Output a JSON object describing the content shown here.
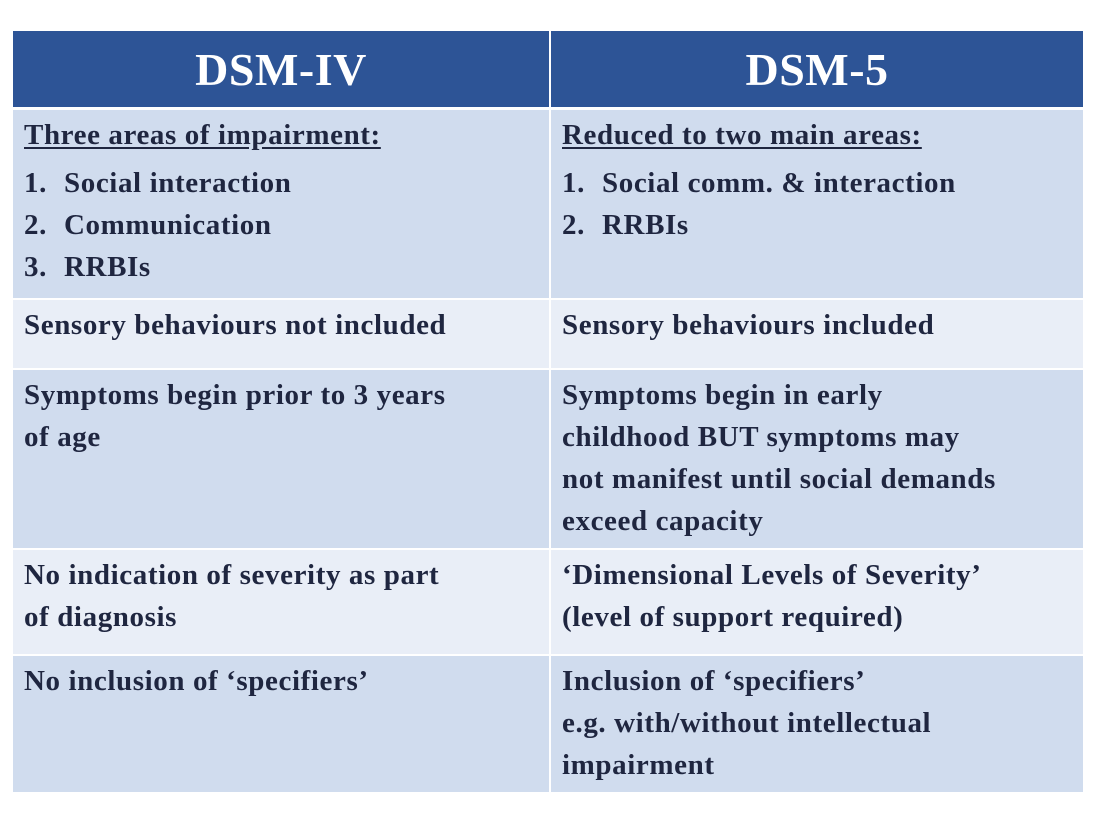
{
  "table": {
    "headers": [
      "DSM-IV",
      "DSM-5"
    ],
    "rows": [
      {
        "left": {
          "heading": "Three areas of impairment:",
          "items": [
            {
              "num": "1.",
              "text": "Social interaction"
            },
            {
              "num": "2.",
              "text": "Communication"
            },
            {
              "num": "3.",
              "text": "RRBIs"
            }
          ]
        },
        "right": {
          "heading": "Reduced to two main areas:",
          "items": [
            {
              "num": "1.",
              "text": "Social comm. & interaction"
            },
            {
              "num": "2.",
              "text": "RRBIs"
            }
          ]
        }
      },
      {
        "left": {
          "lines": [
            "Sensory behaviours not included"
          ]
        },
        "right": {
          "lines": [
            "Sensory behaviours included"
          ]
        }
      },
      {
        "left": {
          "lines": [
            "Symptoms begin prior to 3 years",
            "of age"
          ]
        },
        "right": {
          "lines": [
            "Symptoms begin in early",
            "childhood BUT symptoms may",
            "not manifest until social demands",
            "exceed capacity"
          ]
        }
      },
      {
        "left": {
          "lines": [
            "No indication of severity as part",
            "of diagnosis"
          ]
        },
        "right": {
          "lines": [
            "‘Dimensional Levels of Severity’",
            "(level of support required)"
          ]
        }
      },
      {
        "left": {
          "lines": [
            "No inclusion of ‘specifiers’"
          ]
        },
        "right": {
          "lines": [
            "Inclusion of ‘specifiers’",
            "e.g. with/without intellectual",
            "impairment"
          ]
        }
      }
    ]
  }
}
